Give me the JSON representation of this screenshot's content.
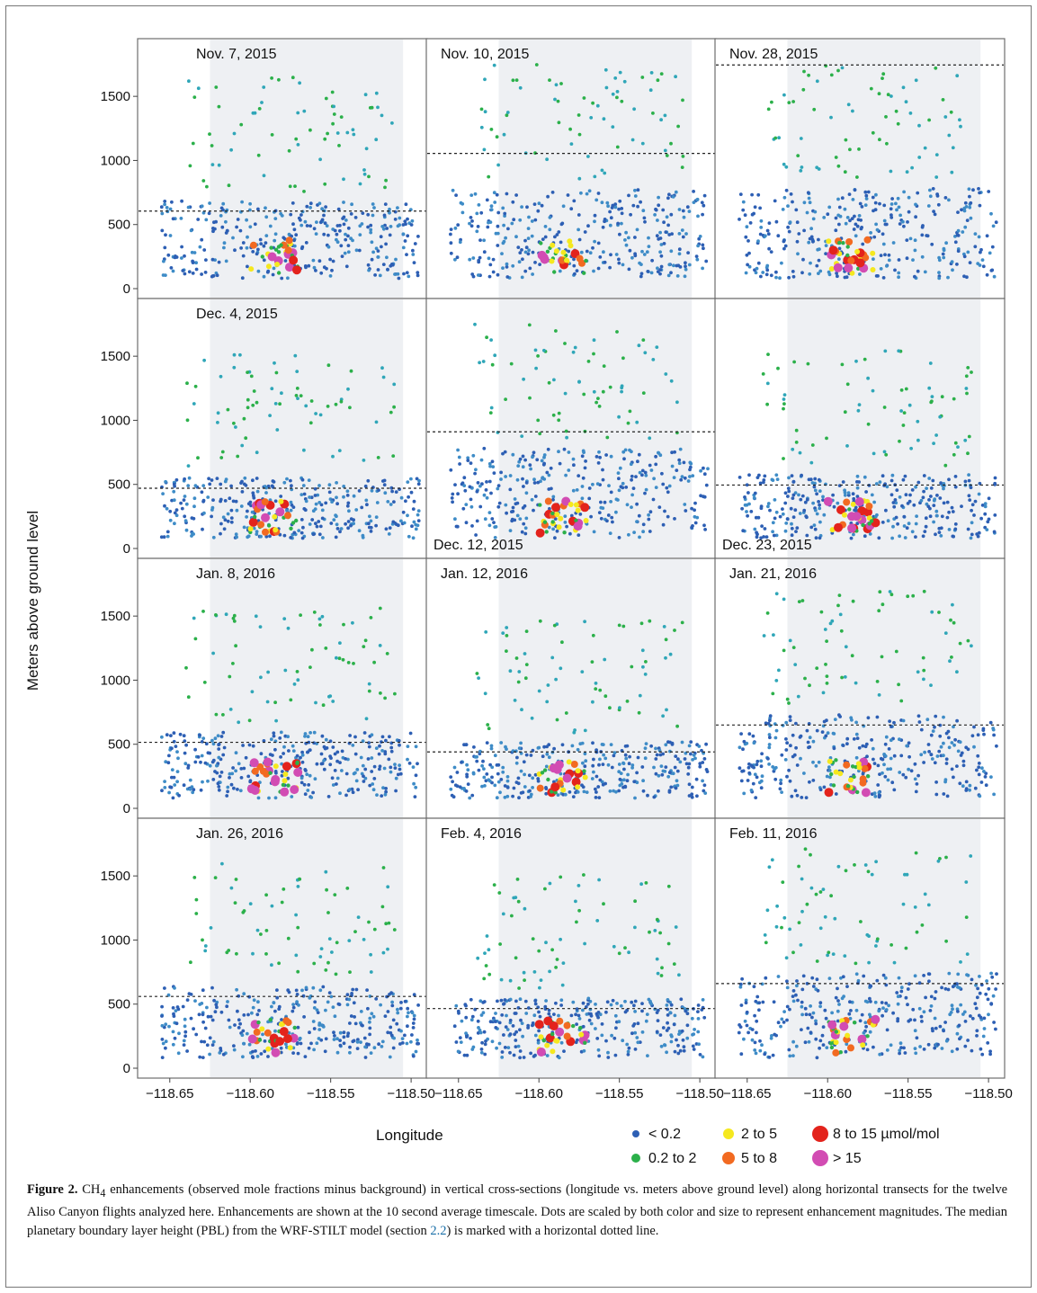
{
  "chart_data": {
    "type": "scatter",
    "ylabel": "Meters above ground level",
    "xlabel": "Longitude",
    "xlim": [
      -118.67,
      -118.49
    ],
    "ylim": [
      0,
      1950
    ],
    "yticks": [
      0,
      500,
      1000,
      1500
    ],
    "xticks": [
      -118.65,
      -118.6,
      -118.55,
      -118.5
    ],
    "xtick_labels": [
      "−118.65",
      "−118.60",
      "−118.55",
      "−118.50"
    ],
    "background_band": [
      -118.625,
      -118.505
    ],
    "legend": {
      "unit": "µmol/mol",
      "entries": [
        {
          "label": "< 0.2",
          "color": "#2d5fb4"
        },
        {
          "label": "0.2 to 2",
          "color": "#2bb04a"
        },
        {
          "label": "2 to 5",
          "color": "#f5e81f"
        },
        {
          "label": "5 to 8",
          "color": "#f26a21"
        },
        {
          "label": "8 to 15 µmol/mol",
          "color": "#e3231c"
        },
        {
          "label": "> 15",
          "color": "#d24cb3"
        }
      ]
    },
    "panels": [
      {
        "date": "Nov. 7, 2015",
        "pbl": 605
      },
      {
        "date": "Nov. 10, 2015",
        "pbl": 1055
      },
      {
        "date": "Nov. 28, 2015",
        "pbl": 1745
      },
      {
        "date": "Dec. 4, 2015",
        "pbl": 470
      },
      {
        "date": "Dec. 12, 2015",
        "pbl": 910
      },
      {
        "date": "Dec. 23, 2015",
        "pbl": 495
      },
      {
        "date": "Jan. 8, 2016",
        "pbl": 515
      },
      {
        "date": "Jan. 12, 2016",
        "pbl": 440
      },
      {
        "date": "Jan. 21, 2016",
        "pbl": 650
      },
      {
        "date": "Jan. 26, 2016",
        "pbl": 560
      },
      {
        "date": "Feb. 4, 2016",
        "pbl": 465
      },
      {
        "date": "Feb. 11, 2016",
        "pbl": 660
      }
    ]
  },
  "caption": {
    "lead": "Figure 2.",
    "species": "CH",
    "species_sub": "4",
    "text_1": " enhancements (observed mole fractions minus background) in vertical cross-sections (longitude vs. meters above ground level) along horizontal transects for the twelve Aliso Canyon flights analyzed here. Enhancements are shown at the 10 second average timescale. Dots are scaled by both color and size to represent enhancement magnitudes. The median planetary boundary layer height (PBL) from the WRF-STILT model (section ",
    "section_ref": "2.2",
    "text_2": ") is marked with a horizontal dotted line."
  }
}
